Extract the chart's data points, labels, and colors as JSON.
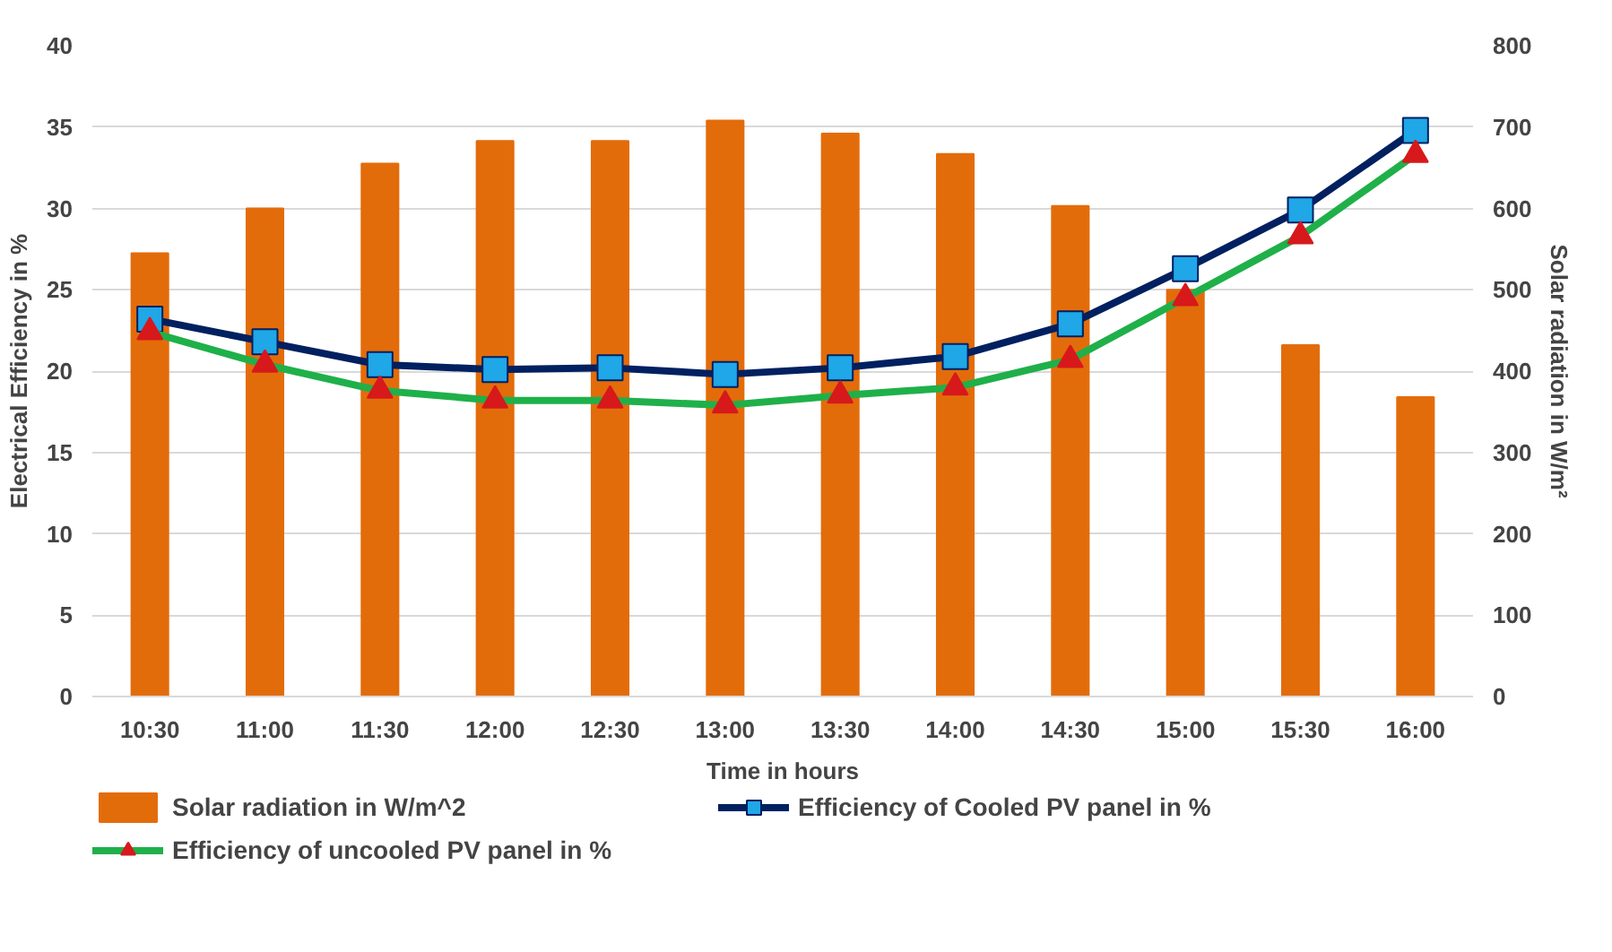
{
  "chart_data": {
    "type": "bar",
    "xlabel": "Time in hours",
    "ylabel": "Electrical Efficiency in %",
    "y2label": "Solar radiation in W/m²",
    "categories": [
      "10:30",
      "11:00",
      "11:30",
      "12:00",
      "12:30",
      "13:00",
      "13:30",
      "14:00",
      "14:30",
      "15:00",
      "15:30",
      "16:00"
    ],
    "series": [
      {
        "name": "Solar radiation in W/m^2",
        "axis": "y2",
        "color": "#e36c0a",
        "values": [
          545,
          600,
          655,
          683,
          683,
          708,
          692,
          667,
          603,
          500,
          432,
          368
        ]
      },
      {
        "name": "Efficiency of Cooled PV panel in %",
        "type": "line",
        "color": "#002060",
        "marker": "square",
        "colors": [
          "#1fa7e8",
          "#1fa7e8",
          "#1fa7e8",
          "#1fa7e8",
          "#1fa7e8",
          "#1fa7e8",
          "#1fa7e8",
          "#1fa7e8",
          "#1fa7e8",
          "#1fa7e8",
          "#1fa7e8",
          "#1fa7e8"
        ],
        "values": [
          23.2,
          21.8,
          20.4,
          20.1,
          20.2,
          19.8,
          20.2,
          20.9,
          22.9,
          26.3,
          29.9,
          34.8
        ]
      },
      {
        "name": "Efficiency of uncooled PV panel in %",
        "type": "line",
        "color": "#1fb04a",
        "marker": "triangle",
        "colors": [
          "#d7191c",
          "#d7191c",
          "#d7191c",
          "#d7191c",
          "#d7191c",
          "#d7191c",
          "#d7191c",
          "#d7191c",
          "#d7191c",
          "#d7191c",
          "#d7191c",
          "#d7191c"
        ],
        "values": [
          22.4,
          20.4,
          18.8,
          18.2,
          18.2,
          17.9,
          18.5,
          19.0,
          20.7,
          24.5,
          28.3,
          33.3
        ]
      }
    ],
    "ylim": [
      0,
      40
    ],
    "yticks": [
      0,
      5,
      10,
      15,
      20,
      25,
      30,
      35,
      40
    ],
    "y2lim": [
      0,
      800
    ],
    "y2ticks": [
      0,
      100,
      200,
      300,
      400,
      500,
      600,
      700,
      800
    ],
    "grid": "y",
    "legend": "bottom"
  }
}
